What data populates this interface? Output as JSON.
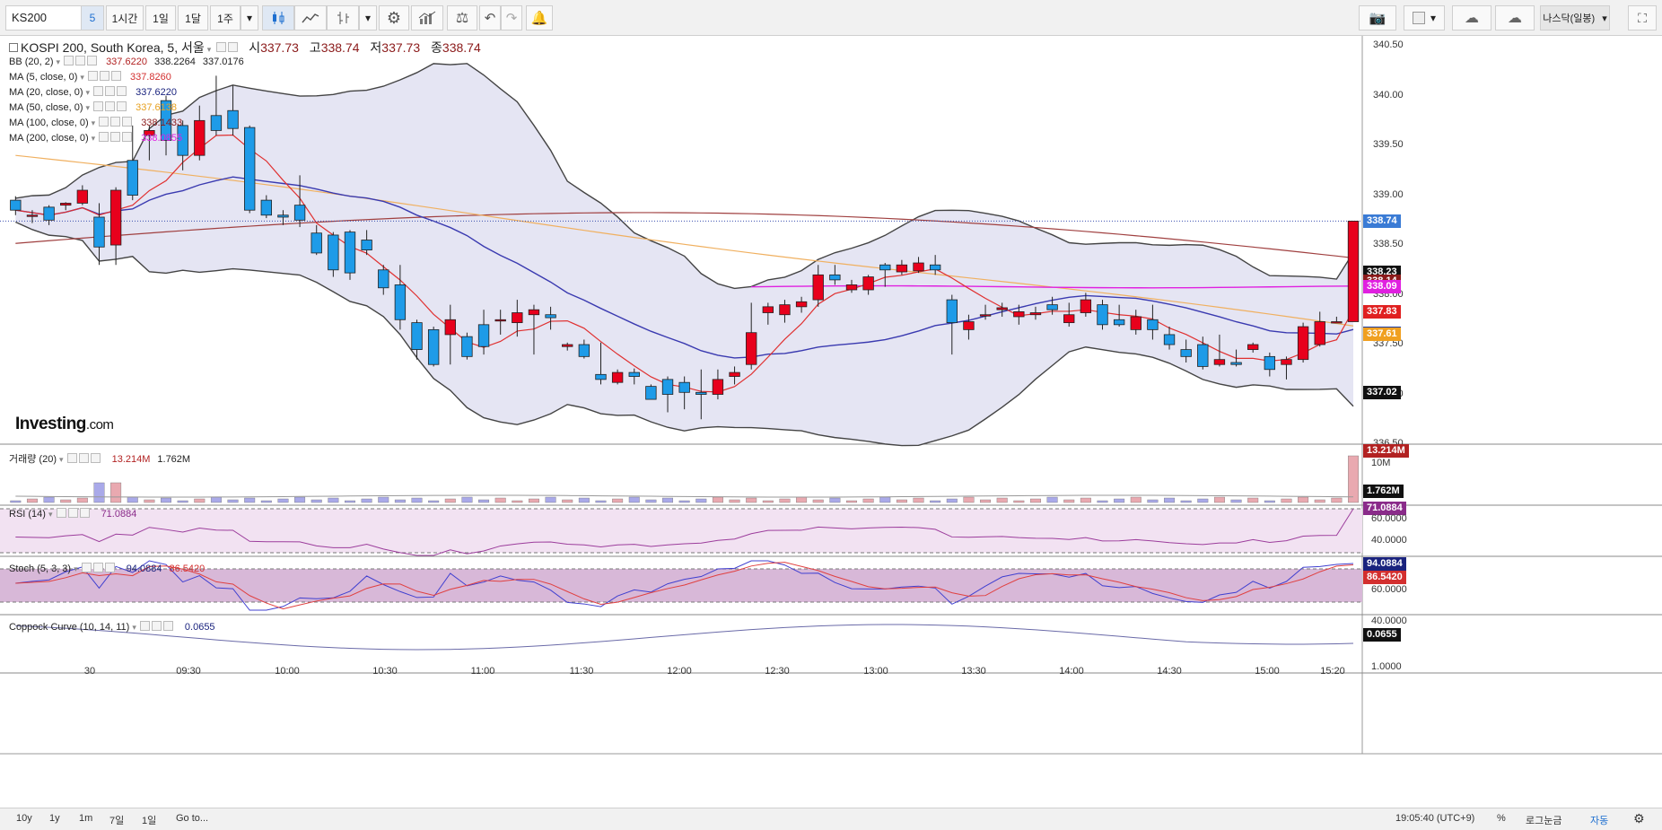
{
  "toolbar": {
    "symbol": "KS200",
    "intervals": [
      "5",
      "1시간",
      "1일",
      "1달",
      "1주"
    ],
    "selected_interval": "5",
    "broker_label": "나스닥(일봉)"
  },
  "main_legend": {
    "title": "KOSPI 200, South Korea, 5, 서울",
    "open_label": "시",
    "open": "337.73",
    "high_label": "고",
    "high": "338.74",
    "low_label": "저",
    "low": "337.73",
    "close_label": "종",
    "close": "338.74"
  },
  "indicators": [
    {
      "name": "BB (20, 2)",
      "values": [
        "337.6220",
        "338.2264",
        "337.0176"
      ],
      "colors": [
        "#b22222",
        "#222222",
        "#222222"
      ]
    },
    {
      "name": "MA (5, close, 0)",
      "values": [
        "337.8260"
      ],
      "colors": [
        "#d32f2f"
      ]
    },
    {
      "name": "MA (20, close, 0)",
      "values": [
        "337.6220"
      ],
      "colors": [
        "#1a237e"
      ]
    },
    {
      "name": "MA (50, close, 0)",
      "values": [
        "337.6138"
      ],
      "colors": [
        "#e6a020"
      ]
    },
    {
      "name": "MA (100, close, 0)",
      "values": [
        "338.1433"
      ],
      "colors": [
        "#8b1a1a"
      ]
    },
    {
      "name": "MA (200, close, 0)",
      "values": [
        "338.0855"
      ],
      "colors": [
        "#e020e0"
      ]
    }
  ],
  "price_axis": [
    "340.50",
    "340.00",
    "339.50",
    "339.00",
    "338.50",
    "338.00",
    "337.50",
    "337.00",
    "336.50"
  ],
  "price_tags": [
    {
      "text": "338.74",
      "bg": "#3a7bd5",
      "fg": "#ffffff",
      "price": 338.74
    },
    {
      "text": "338.23",
      "bg": "#111111",
      "fg": "#ffffff",
      "price": 338.23
    },
    {
      "text": "338.14",
      "bg": "#8b1a1a",
      "fg": "#ffffff",
      "price": 338.14
    },
    {
      "text": "338.09",
      "bg": "#e020e0",
      "fg": "#ffffff",
      "price": 338.09
    },
    {
      "text": "337.83",
      "bg": "#e02020",
      "fg": "#ffffff",
      "price": 337.83
    },
    {
      "text": "337.62",
      "bg": "#1a3a9e",
      "fg": "#ffffff",
      "price": 337.62
    },
    {
      "text": "337.61",
      "bg": "#f0a020",
      "fg": "#ffffff",
      "price": 337.61
    },
    {
      "text": "337.02",
      "bg": "#111111",
      "fg": "#ffffff",
      "price": 337.02
    }
  ],
  "volume_pane": {
    "name": "거래량 (20)",
    "value1": "13.214M",
    "value2": "1.762M",
    "axis": "10M",
    "tag1": "13.214M",
    "tag2": "1.762M"
  },
  "rsi_pane": {
    "name": "RSI (14)",
    "value": "71.0884",
    "axis": [
      "60.0000",
      "40.0000"
    ],
    "tag": "71.0884"
  },
  "stoch_pane": {
    "name": "Stoch (5, 3, 3)",
    "k": "94.0884",
    "d": "86.5420",
    "axis": [
      "60.0000",
      "40.0000"
    ],
    "tag_k": "94.0884",
    "tag_d": "86.5420"
  },
  "coppock_pane": {
    "name": "Coppock Curve (10, 14, 11)",
    "value": "0.0655",
    "axis": "1.0000",
    "tag": "0.0655"
  },
  "time_labels": [
    "30",
    "09:30",
    "10:00",
    "10:30",
    "11:00",
    "11:30",
    "12:00",
    "12:30",
    "13:00",
    "13:30",
    "14:00",
    "14:30",
    "15:00",
    "15:20"
  ],
  "logo": {
    "main": "Investing",
    "suffix": ".com"
  },
  "bottom_bar": {
    "ranges": [
      "10y",
      "1y",
      "1m",
      "7일",
      "1일"
    ],
    "goto": "Go to...",
    "clock": "19:05:40 (UTC+9)",
    "percent": "%",
    "log": "로그눈금",
    "auto": "자동"
  },
  "chart_data": {
    "type": "candlestick",
    "y_range": [
      336.5,
      340.6
    ],
    "candles": [
      [
        338.95,
        338.85,
        338.99,
        338.8
      ],
      [
        338.8,
        338.8,
        338.85,
        338.72
      ],
      [
        338.88,
        338.75,
        338.9,
        338.7
      ],
      [
        338.9,
        338.92,
        338.93,
        338.85
      ],
      [
        338.92,
        339.05,
        339.1,
        338.9
      ],
      [
        338.78,
        338.48,
        338.92,
        338.3
      ],
      [
        338.5,
        339.05,
        339.08,
        338.3
      ],
      [
        339.35,
        339.0,
        339.7,
        338.95
      ],
      [
        339.6,
        339.65,
        339.7,
        339.35
      ],
      [
        339.95,
        339.55,
        340.0,
        339.4
      ],
      [
        339.7,
        339.4,
        339.75,
        339.25
      ],
      [
        339.4,
        339.75,
        339.9,
        339.35
      ],
      [
        339.8,
        339.65,
        340.2,
        339.6
      ],
      [
        339.85,
        339.67,
        340.1,
        339.6
      ],
      [
        339.68,
        338.85,
        339.7,
        338.82
      ],
      [
        338.95,
        338.8,
        339.0,
        338.77
      ],
      [
        338.8,
        338.78,
        338.85,
        338.7
      ],
      [
        338.9,
        338.75,
        339.2,
        338.68
      ],
      [
        338.62,
        338.42,
        338.7,
        338.4
      ],
      [
        338.6,
        338.25,
        338.63,
        338.18
      ],
      [
        338.63,
        338.22,
        338.65,
        338.15
      ],
      [
        338.55,
        338.45,
        338.65,
        338.4
      ],
      [
        338.25,
        338.07,
        338.3,
        338.0
      ],
      [
        338.1,
        337.75,
        338.3,
        337.65
      ],
      [
        337.72,
        337.45,
        337.75,
        337.35
      ],
      [
        337.65,
        337.3,
        337.68,
        337.28
      ],
      [
        337.6,
        337.75,
        337.9,
        337.3
      ],
      [
        337.58,
        337.38,
        337.62,
        337.35
      ],
      [
        337.7,
        337.48,
        337.85,
        337.4
      ],
      [
        337.75,
        337.75,
        337.85,
        337.6
      ],
      [
        337.72,
        337.82,
        337.95,
        337.58
      ],
      [
        337.8,
        337.85,
        337.9,
        337.4
      ],
      [
        337.8,
        337.77,
        337.88,
        337.65
      ],
      [
        337.48,
        337.5,
        337.52,
        337.44
      ],
      [
        337.5,
        337.38,
        337.55,
        337.36
      ],
      [
        337.2,
        337.15,
        337.52,
        337.1
      ],
      [
        337.12,
        337.22,
        337.25,
        337.1
      ],
      [
        337.22,
        337.18,
        337.26,
        337.1
      ],
      [
        337.08,
        336.95,
        337.1,
        336.95
      ],
      [
        337.15,
        337.0,
        337.18,
        336.82
      ],
      [
        337.12,
        337.02,
        337.18,
        336.85
      ],
      [
        337.02,
        337.0,
        337.25,
        336.75
      ],
      [
        337.0,
        337.15,
        337.25,
        336.95
      ],
      [
        337.18,
        337.22,
        337.28,
        337.1
      ],
      [
        337.3,
        337.62,
        337.92,
        337.25
      ],
      [
        337.82,
        337.88,
        337.92,
        337.7
      ],
      [
        337.8,
        337.9,
        337.95,
        337.72
      ],
      [
        337.88,
        337.93,
        337.98,
        337.82
      ],
      [
        337.95,
        338.2,
        338.3,
        337.88
      ],
      [
        338.2,
        338.15,
        338.3,
        338.1
      ],
      [
        338.05,
        338.1,
        338.15,
        338.02
      ],
      [
        338.05,
        338.18,
        338.2,
        338.0
      ],
      [
        338.3,
        338.25,
        338.32,
        338.08
      ],
      [
        338.23,
        338.3,
        338.35,
        338.2
      ],
      [
        338.24,
        338.32,
        338.38,
        338.22
      ],
      [
        338.3,
        338.25,
        338.4,
        338.2
      ],
      [
        337.95,
        337.72,
        338.0,
        337.4
      ],
      [
        337.65,
        337.73,
        337.8,
        337.55
      ],
      [
        337.8,
        337.8,
        337.9,
        337.75
      ],
      [
        337.85,
        337.87,
        337.92,
        337.78
      ],
      [
        337.78,
        337.83,
        337.9,
        337.7
      ],
      [
        337.8,
        337.82,
        337.88,
        337.75
      ],
      [
        337.9,
        337.85,
        337.98,
        337.8
      ],
      [
        337.72,
        337.8,
        337.92,
        337.68
      ],
      [
        337.82,
        337.95,
        338.02,
        337.78
      ],
      [
        337.9,
        337.7,
        337.95,
        337.65
      ],
      [
        337.75,
        337.7,
        337.9,
        337.68
      ],
      [
        337.65,
        337.78,
        337.85,
        337.6
      ],
      [
        337.75,
        337.65,
        337.9,
        337.55
      ],
      [
        337.6,
        337.5,
        337.68,
        337.45
      ],
      [
        337.45,
        337.38,
        337.55,
        337.32
      ],
      [
        337.5,
        337.28,
        337.58,
        337.25
      ],
      [
        337.3,
        337.35,
        337.6,
        337.28
      ],
      [
        337.32,
        337.3,
        337.45,
        337.28
      ],
      [
        337.45,
        337.5,
        337.52,
        337.42
      ],
      [
        337.38,
        337.25,
        337.42,
        337.18
      ],
      [
        337.3,
        337.35,
        337.38,
        337.15
      ],
      [
        337.35,
        337.68,
        337.72,
        337.32
      ],
      [
        337.5,
        337.73,
        337.83,
        337.48
      ],
      [
        337.73,
        337.73,
        337.78,
        337.72
      ],
      [
        337.73,
        338.74,
        338.74,
        337.73
      ]
    ],
    "volume_pane": {
      "volume": "13.214M",
      "volume_ma": "1.762M"
    },
    "rsi": 71.0884,
    "stoch": {
      "k": 94.0884,
      "d": 86.542
    },
    "coppock": 0.0655
  }
}
